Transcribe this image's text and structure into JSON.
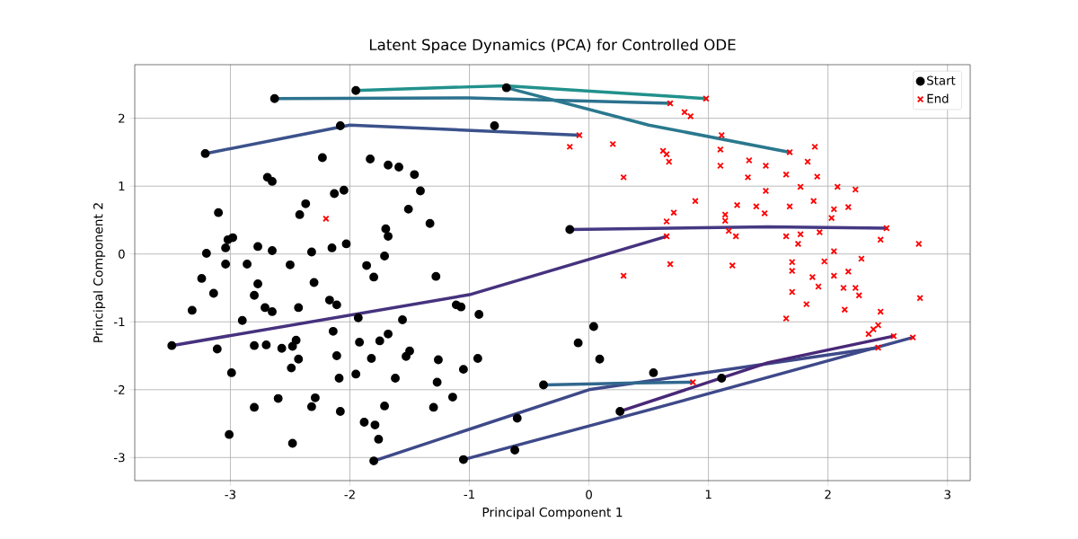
{
  "chart_data": {
    "type": "scatter",
    "title": "Latent Space Dynamics (PCA) for Controlled ODE",
    "xlabel": "Principal Component 1",
    "ylabel": "Principal Component 2",
    "xlim": [
      -3.8,
      3.19
    ],
    "ylim": [
      -3.34,
      2.79
    ],
    "xticks": [
      -3,
      -2,
      -1,
      0,
      1,
      2,
      3
    ],
    "yticks": [
      -3,
      -2,
      -1,
      0,
      1,
      2
    ],
    "grid": true,
    "legend": "top right",
    "series": [
      {
        "type": "line",
        "color": "#21918c",
        "x": [
          -1.95,
          -0.7,
          0.98
        ],
        "values": [
          2.41,
          2.48,
          2.29
        ]
      },
      {
        "type": "line",
        "color": "#2c728e",
        "x": [
          -2.63,
          -1.0,
          0.68
        ],
        "values": [
          2.29,
          2.3,
          2.22
        ]
      },
      {
        "type": "line",
        "color": "#2a788e",
        "x": [
          -0.69,
          0.5,
          1.68
        ],
        "values": [
          2.45,
          1.9,
          1.5
        ]
      },
      {
        "type": "line",
        "color": "#3b528b",
        "x": [
          -3.21,
          -2.0,
          -0.08
        ],
        "values": [
          1.48,
          1.9,
          1.75
        ]
      },
      {
        "type": "line",
        "color": "#46327e",
        "x": [
          -3.49,
          -1.0,
          0.65
        ],
        "values": [
          -1.35,
          -0.6,
          0.26
        ]
      },
      {
        "type": "line",
        "color": "#3e4989",
        "x": [
          -1.8,
          0.0,
          2.42
        ],
        "values": [
          -3.05,
          -2.0,
          -1.38
        ]
      },
      {
        "type": "line",
        "color": "#3e4989",
        "x": [
          -1.05,
          0.5,
          2.71
        ],
        "values": [
          -3.03,
          -2.3,
          -1.23
        ]
      },
      {
        "type": "line",
        "color": "#482878",
        "x": [
          0.26,
          1.5,
          2.55
        ],
        "values": [
          -2.32,
          -1.6,
          -1.21
        ]
      },
      {
        "type": "line",
        "color": "#443983",
        "x": [
          -0.16,
          1.5,
          2.49
        ],
        "values": [
          0.36,
          0.4,
          0.38
        ]
      },
      {
        "type": "line",
        "color": "#31688e",
        "x": [
          -0.38,
          0.4,
          0.87
        ],
        "values": [
          -1.93,
          -1.9,
          -1.89
        ]
      },
      {
        "name": "Start",
        "marker": "circle",
        "color": "#000000",
        "x": [
          -3.49,
          -3.21,
          -3.1,
          -2.63,
          -1.95,
          -0.69,
          -0.79,
          -2.08,
          -2.23,
          -2.69,
          -2.65,
          -1.83,
          -1.68,
          -1.59,
          -1.46,
          -1.41,
          -2.37,
          -2.13,
          -2.05,
          -2.42,
          -1.51,
          -1.33,
          -0.16,
          -3.2,
          -3.02,
          -2.98,
          -3.04,
          -2.77,
          -2.65,
          -2.32,
          -2.15,
          -2.03,
          -1.7,
          -1.68,
          -1.71,
          -2.5,
          -3.32,
          -3.14,
          -3.24,
          -3.04,
          -2.86,
          -2.77,
          -2.8,
          -2.9,
          -2.71,
          -2.65,
          -2.43,
          -3.11,
          -2.99,
          -2.8,
          -2.7,
          -2.57,
          -2.48,
          -2.45,
          -2.43,
          -2.49,
          -2.8,
          -2.6,
          -2.32,
          -2.29,
          -2.08,
          -3.01,
          -2.48,
          -1.88,
          -1.79,
          -1.76,
          -1.8,
          -1.05,
          -0.62,
          -0.6,
          -0.38,
          -1.71,
          -1.3,
          -1.27,
          -1.14,
          -1.05,
          -0.93,
          -1.62,
          -1.95,
          -2.09,
          -1.82,
          -1.5,
          -1.53,
          -1.26,
          -1.92,
          -1.75,
          -1.68,
          -2.11,
          -2.14,
          -1.93,
          -2.17,
          -2.11,
          -1.8,
          -1.86,
          -1.28,
          -1.11,
          -1.07,
          -0.92,
          -1.56,
          -2.3,
          -0.09,
          0.04,
          0.09,
          0.54,
          0.26,
          1.11
        ],
        "values": [
          -1.35,
          1.48,
          0.61,
          2.29,
          2.41,
          2.45,
          1.89,
          1.89,
          1.42,
          1.13,
          1.07,
          1.4,
          1.31,
          1.28,
          1.17,
          0.93,
          0.74,
          0.89,
          0.94,
          0.58,
          0.66,
          0.45,
          0.36,
          0.01,
          0.21,
          0.24,
          0.09,
          0.11,
          0.05,
          0.03,
          0.09,
          0.15,
          0.37,
          0.26,
          -0.03,
          -0.16,
          -0.83,
          -0.58,
          -0.36,
          -0.15,
          -0.15,
          -0.44,
          -0.61,
          -0.98,
          -0.79,
          -0.85,
          -0.79,
          -1.4,
          -1.75,
          -1.35,
          -1.34,
          -1.39,
          -1.36,
          -1.27,
          -1.55,
          -1.68,
          -2.26,
          -2.13,
          -2.25,
          -2.12,
          -2.32,
          -2.66,
          -2.79,
          -2.48,
          -2.52,
          -2.73,
          -3.05,
          -3.03,
          -2.89,
          -2.42,
          -1.93,
          -2.24,
          -2.26,
          -1.89,
          -2.11,
          -1.7,
          -1.54,
          -1.83,
          -1.77,
          -1.83,
          -1.54,
          -1.43,
          -1.51,
          -1.56,
          -1.3,
          -1.28,
          -1.18,
          -1.5,
          -1.14,
          -0.94,
          -0.68,
          -0.75,
          -0.34,
          -0.17,
          -0.33,
          -0.75,
          -0.78,
          -0.89,
          -0.97,
          -0.42,
          -1.31,
          -1.07,
          -1.55,
          -1.75,
          -2.32,
          -1.83
        ]
      },
      {
        "name": "End",
        "marker": "cross",
        "color": "#ff0000",
        "x": [
          0.98,
          0.68,
          0.8,
          0.85,
          -0.08,
          -0.16,
          0.2,
          1.11,
          1.1,
          0.62,
          0.65,
          0.67,
          1.1,
          1.34,
          1.48,
          1.68,
          1.89,
          1.83,
          1.65,
          1.91,
          1.33,
          0.29,
          1.77,
          2.23,
          2.08,
          1.48,
          0.89,
          1.24,
          1.4,
          1.68,
          1.88,
          2.05,
          2.17,
          0.71,
          1.47,
          1.14,
          0.65,
          1.14,
          2.03,
          2.49,
          2.76,
          2.44,
          0.65,
          1.17,
          1.23,
          1.65,
          1.77,
          1.93,
          1.75,
          2.05,
          2.28,
          1.97,
          1.7,
          1.2,
          0.68,
          0.29,
          1.7,
          2.05,
          2.17,
          1.87,
          1.92,
          1.7,
          2.13,
          2.23,
          2.26,
          2.77,
          1.82,
          2.14,
          2.44,
          1.65,
          2.42,
          2.38,
          2.34,
          2.55,
          2.71,
          2.42,
          0.87,
          -2.2
        ],
        "values": [
          2.29,
          2.22,
          2.09,
          2.03,
          1.75,
          1.58,
          1.62,
          1.75,
          1.54,
          1.52,
          1.47,
          1.36,
          1.3,
          1.38,
          1.3,
          1.5,
          1.58,
          1.36,
          1.17,
          1.14,
          1.13,
          1.13,
          0.99,
          0.95,
          0.99,
          0.93,
          0.78,
          0.72,
          0.7,
          0.7,
          0.78,
          0.66,
          0.69,
          0.61,
          0.6,
          0.58,
          0.48,
          0.49,
          0.53,
          0.38,
          0.15,
          0.21,
          0.26,
          0.34,
          0.26,
          0.26,
          0.29,
          0.32,
          0.15,
          0.04,
          -0.07,
          -0.11,
          -0.12,
          -0.17,
          -0.15,
          -0.32,
          -0.25,
          -0.32,
          -0.26,
          -0.34,
          -0.48,
          -0.56,
          -0.5,
          -0.5,
          -0.61,
          -0.65,
          -0.74,
          -0.82,
          -0.85,
          -0.95,
          -1.05,
          -1.11,
          -1.18,
          -1.21,
          -1.23,
          -1.38,
          -1.89,
          0.52
        ]
      }
    ]
  }
}
